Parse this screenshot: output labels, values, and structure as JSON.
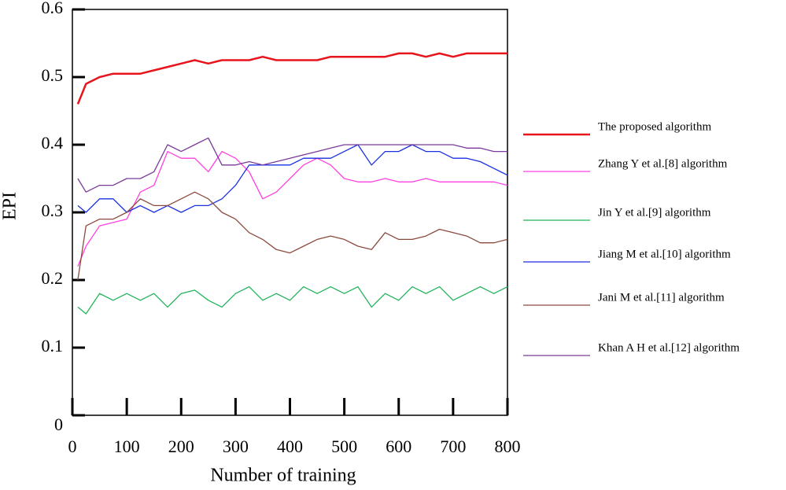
{
  "chart_data": {
    "type": "line",
    "x_label": "Number of training",
    "y_label": "EPI",
    "xlim": [
      0,
      800
    ],
    "ylim": [
      0,
      0.6
    ],
    "xticks": [
      0,
      100,
      200,
      300,
      400,
      500,
      600,
      700,
      800
    ],
    "yticks": [
      0,
      0.1,
      0.2,
      0.3,
      0.4,
      0.5,
      0.6
    ],
    "x": [
      10,
      25,
      50,
      75,
      100,
      125,
      150,
      175,
      200,
      225,
      250,
      275,
      300,
      325,
      350,
      375,
      400,
      425,
      450,
      475,
      500,
      525,
      550,
      575,
      600,
      625,
      650,
      675,
      700,
      725,
      750,
      775,
      800
    ],
    "series": [
      {
        "name": "The proposed algorithm",
        "color": "#e8141c",
        "width": 2.5,
        "values": [
          0.46,
          0.49,
          0.5,
          0.505,
          0.505,
          0.505,
          0.51,
          0.515,
          0.52,
          0.525,
          0.52,
          0.525,
          0.525,
          0.525,
          0.53,
          0.525,
          0.525,
          0.525,
          0.525,
          0.53,
          0.53,
          0.53,
          0.53,
          0.53,
          0.535,
          0.535,
          0.53,
          0.535,
          0.53,
          0.535,
          0.535,
          0.535,
          0.535
        ]
      },
      {
        "name": "Zhang Y et al.[8] algorithm",
        "color": "#ff40e0",
        "width": 1.3,
        "values": [
          0.22,
          0.25,
          0.28,
          0.285,
          0.29,
          0.33,
          0.34,
          0.39,
          0.38,
          0.38,
          0.36,
          0.39,
          0.38,
          0.36,
          0.32,
          0.33,
          0.35,
          0.37,
          0.38,
          0.37,
          0.35,
          0.345,
          0.345,
          0.35,
          0.345,
          0.345,
          0.35,
          0.345,
          0.345,
          0.345,
          0.345,
          0.345,
          0.34
        ]
      },
      {
        "name": "Jin Y et al.[9] algorithm",
        "color": "#22b35a",
        "width": 1.3,
        "values": [
          0.16,
          0.15,
          0.18,
          0.17,
          0.18,
          0.17,
          0.18,
          0.16,
          0.18,
          0.185,
          0.17,
          0.16,
          0.18,
          0.19,
          0.17,
          0.18,
          0.17,
          0.19,
          0.18,
          0.19,
          0.18,
          0.19,
          0.16,
          0.18,
          0.17,
          0.19,
          0.18,
          0.19,
          0.17,
          0.18,
          0.19,
          0.18,
          0.19
        ]
      },
      {
        "name": "Jiang M et al.[10] algorithm",
        "color": "#1a2fe0",
        "width": 1.3,
        "values": [
          0.31,
          0.3,
          0.32,
          0.32,
          0.3,
          0.31,
          0.3,
          0.31,
          0.3,
          0.31,
          0.31,
          0.32,
          0.34,
          0.37,
          0.37,
          0.37,
          0.37,
          0.38,
          0.38,
          0.38,
          0.39,
          0.4,
          0.37,
          0.39,
          0.39,
          0.4,
          0.39,
          0.39,
          0.38,
          0.38,
          0.375,
          0.365,
          0.355
        ]
      },
      {
        "name": "Jani M et al.[11] algorithm",
        "color": "#8b4a3e",
        "width": 1.3,
        "values": [
          0.2,
          0.28,
          0.29,
          0.29,
          0.3,
          0.32,
          0.31,
          0.31,
          0.32,
          0.33,
          0.32,
          0.3,
          0.29,
          0.27,
          0.26,
          0.245,
          0.24,
          0.25,
          0.26,
          0.265,
          0.26,
          0.25,
          0.245,
          0.27,
          0.26,
          0.26,
          0.265,
          0.275,
          0.27,
          0.265,
          0.255,
          0.255,
          0.26
        ]
      },
      {
        "name": "Khan A H et al.[12] algorithm",
        "color": "#7a3a9a",
        "width": 1.3,
        "values": [
          0.35,
          0.33,
          0.34,
          0.34,
          0.35,
          0.35,
          0.36,
          0.4,
          0.39,
          0.4,
          0.41,
          0.37,
          0.37,
          0.375,
          0.37,
          0.375,
          0.38,
          0.385,
          0.39,
          0.395,
          0.4,
          0.4,
          0.4,
          0.4,
          0.4,
          0.4,
          0.4,
          0.4,
          0.4,
          0.395,
          0.395,
          0.39,
          0.39
        ]
      }
    ]
  }
}
